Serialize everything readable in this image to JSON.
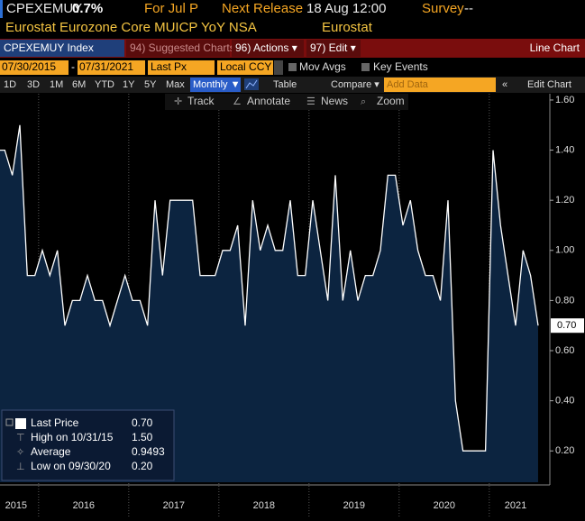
{
  "header": {
    "ticker": "CPEXEMUY",
    "last": "0.7%",
    "period": "For Jul P",
    "next_release_label": "Next Release",
    "next_release": "18 Aug 12:00",
    "survey_label": "Survey",
    "survey": "--",
    "description": "Eurostat Eurozone Core MUICP YoY NSA",
    "source": "Eurostat"
  },
  "toolbar": {
    "security": "CPEXEMUY Index",
    "suggested": "94) Suggested Charts",
    "actions": "96) Actions ▾",
    "edit": "97) Edit ▾",
    "chart_type": "Line Chart",
    "start_date": "07/30/2015",
    "date_sep": "-",
    "end_date": "07/31/2021",
    "field": "Last Px",
    "currency": "Local CCY",
    "mov_avgs": "Mov Avgs",
    "key_events": "Key Events",
    "periods": [
      "1D",
      "3D",
      "1M",
      "6M",
      "YTD",
      "1Y",
      "5Y",
      "Max"
    ],
    "frequency": "Monthly ▼",
    "table": "Table",
    "compare": "Compare ▾",
    "add_data": "Add Data",
    "edit_chart": "Edit Chart",
    "tools": [
      "Track",
      "Annotate",
      "News",
      "Zoom"
    ]
  },
  "chart_data": {
    "type": "area",
    "color": "#ffffff",
    "fill": "#0c2440",
    "values": [
      1.4,
      1.4,
      1.3,
      1.5,
      0.9,
      0.9,
      1.0,
      0.9,
      1.0,
      0.7,
      0.8,
      0.8,
      0.9,
      0.8,
      0.8,
      0.7,
      0.8,
      0.9,
      0.8,
      0.8,
      0.7,
      1.2,
      0.9,
      1.2,
      1.2,
      1.2,
      1.2,
      0.9,
      0.9,
      0.9,
      1.0,
      1.0,
      1.1,
      0.7,
      1.2,
      1.0,
      1.1,
      1.0,
      1.0,
      1.2,
      0.9,
      0.9,
      1.2,
      1.0,
      0.8,
      1.3,
      0.8,
      1.0,
      0.8,
      0.9,
      0.9,
      1.0,
      1.3,
      1.3,
      1.1,
      1.2,
      1.0,
      0.9,
      0.9,
      0.8,
      1.2,
      0.4,
      0.2,
      0.2,
      0.2,
      0.2,
      1.4,
      1.1,
      0.9,
      0.7,
      1.0,
      0.9,
      0.7
    ],
    "year_labels": [
      "2015",
      "2016",
      "2017",
      "2018",
      "2019",
      "2020",
      "2021"
    ],
    "ylim": [
      0.075,
      1.625
    ],
    "yticks": [
      {
        "value": 0.2,
        "label": "0.20"
      },
      {
        "value": 0.4,
        "label": "0.40"
      },
      {
        "value": 0.6,
        "label": "0.60"
      },
      {
        "value": 0.8,
        "label": "0.80"
      },
      {
        "value": 1.0,
        "label": "1.00"
      },
      {
        "value": 1.2,
        "label": "1.20"
      },
      {
        "value": 1.4,
        "label": "1.40"
      },
      {
        "value": 1.6,
        "label": "1.60"
      }
    ],
    "last_value_label": "0.70",
    "legend": [
      {
        "name": "Last Price",
        "value": "0.70"
      },
      {
        "name": "High on 10/31/15",
        "value": "1.50"
      },
      {
        "name": "Average",
        "value": "0.9493"
      },
      {
        "name": "Low on 09/30/20",
        "value": "0.20"
      }
    ]
  }
}
